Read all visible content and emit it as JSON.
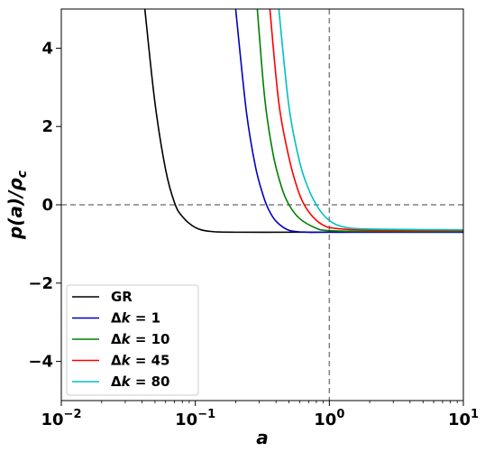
{
  "chart_data": {
    "type": "line",
    "title": "",
    "xlabel": "a",
    "ylabel": "p(a)/ρ_c",
    "xscale": "log",
    "xlim": [
      0.01,
      10
    ],
    "ylim": [
      -5,
      5
    ],
    "grid": false,
    "legend_position": "lower-left",
    "x_ticks": [
      {
        "value": 0.01,
        "base": "10",
        "exp": "−2"
      },
      {
        "value": 0.1,
        "base": "10",
        "exp": "−1"
      },
      {
        "value": 1,
        "base": "10",
        "exp": "0"
      },
      {
        "value": 10,
        "base": "10",
        "exp": "1"
      }
    ],
    "y_ticks": [
      {
        "value": -4,
        "label": "−4"
      },
      {
        "value": -2,
        "label": "−2"
      },
      {
        "value": 0,
        "label": "0"
      },
      {
        "value": 2,
        "label": "2"
      },
      {
        "value": 4,
        "label": "4"
      }
    ],
    "reference_lines": [
      {
        "orientation": "horizontal",
        "value": 0,
        "style": "dashed",
        "color": "#808080"
      },
      {
        "orientation": "vertical",
        "value": 1,
        "style": "dashed",
        "color": "#808080"
      }
    ],
    "series": [
      {
        "name": "GR",
        "label_main": "GR",
        "label_delta": "",
        "label_k": "",
        "label_rest": "",
        "color": "#000000",
        "x": [
          0.042,
          0.05,
          0.06,
          0.07,
          0.08,
          0.1,
          0.13,
          0.2,
          0.5,
          1,
          10
        ],
        "y": [
          5,
          2.6,
          0.9,
          0.05,
          -0.3,
          -0.58,
          -0.68,
          -0.7,
          -0.7,
          -0.7,
          -0.7
        ]
      },
      {
        "name": "Δk = 1",
        "label_main": "",
        "label_delta": "Δ",
        "label_k": "k",
        "label_rest": " = 1",
        "color": "#0000bf",
        "x": [
          0.2,
          0.24,
          0.28,
          0.32,
          0.35,
          0.4,
          0.5,
          0.7,
          1,
          10
        ],
        "y": [
          5,
          2.4,
          1.0,
          0.25,
          -0.1,
          -0.42,
          -0.65,
          -0.7,
          -0.7,
          -0.7
        ]
      },
      {
        "name": "Δk = 10",
        "label_main": "",
        "label_delta": "Δ",
        "label_k": "k",
        "label_rest": " = 10",
        "color": "#008000",
        "x": [
          0.29,
          0.33,
          0.38,
          0.44,
          0.5,
          0.6,
          0.8,
          1,
          2,
          10
        ],
        "y": [
          5,
          2.7,
          1.3,
          0.45,
          0.0,
          -0.35,
          -0.6,
          -0.66,
          -0.68,
          -0.68
        ]
      },
      {
        "name": "Δk = 45",
        "label_main": "",
        "label_delta": "Δ",
        "label_k": "k",
        "label_rest": " = 45",
        "color": "#ff0000",
        "x": [
          0.36,
          0.42,
          0.5,
          0.58,
          0.65,
          0.75,
          0.9,
          1.1,
          2,
          10
        ],
        "y": [
          5,
          2.6,
          1.2,
          0.4,
          0.0,
          -0.3,
          -0.52,
          -0.6,
          -0.65,
          -0.66
        ]
      },
      {
        "name": "Δk = 80",
        "label_main": "",
        "label_delta": "Δ",
        "label_k": "k",
        "label_rest": " = 80",
        "color": "#00bfbf",
        "x": [
          0.42,
          0.5,
          0.6,
          0.7,
          0.8,
          0.9,
          1.05,
          1.3,
          2,
          10
        ],
        "y": [
          5,
          2.5,
          1.1,
          0.4,
          0.0,
          -0.25,
          -0.45,
          -0.57,
          -0.62,
          -0.64
        ]
      }
    ]
  }
}
